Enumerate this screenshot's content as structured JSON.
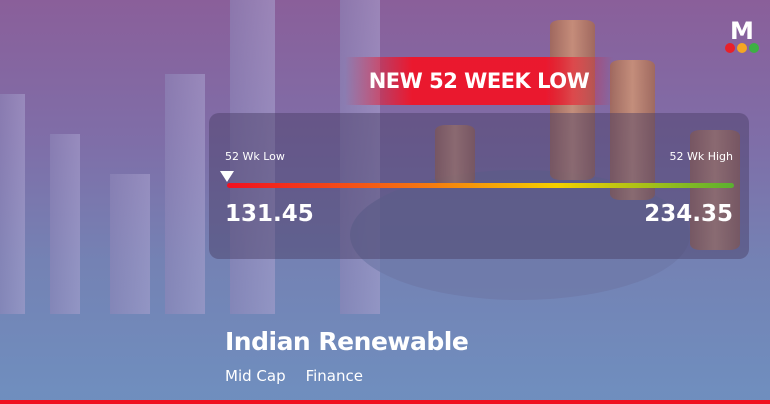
{
  "banner": "NEW 52 WEEK LOW",
  "range": {
    "low_label": "52 Wk Low",
    "high_label": "52 Wk High",
    "low": "131.45",
    "high": "234.35",
    "current_position_fraction": 0
  },
  "company": {
    "name": "Indian Renewable",
    "cap": "Mid Cap",
    "sector": "Finance"
  },
  "logo": {
    "letter": "M",
    "dot_colors": [
      "#e8202a",
      "#f5a623",
      "#3cb043"
    ]
  },
  "colors": {
    "accent": "#f0101e"
  }
}
